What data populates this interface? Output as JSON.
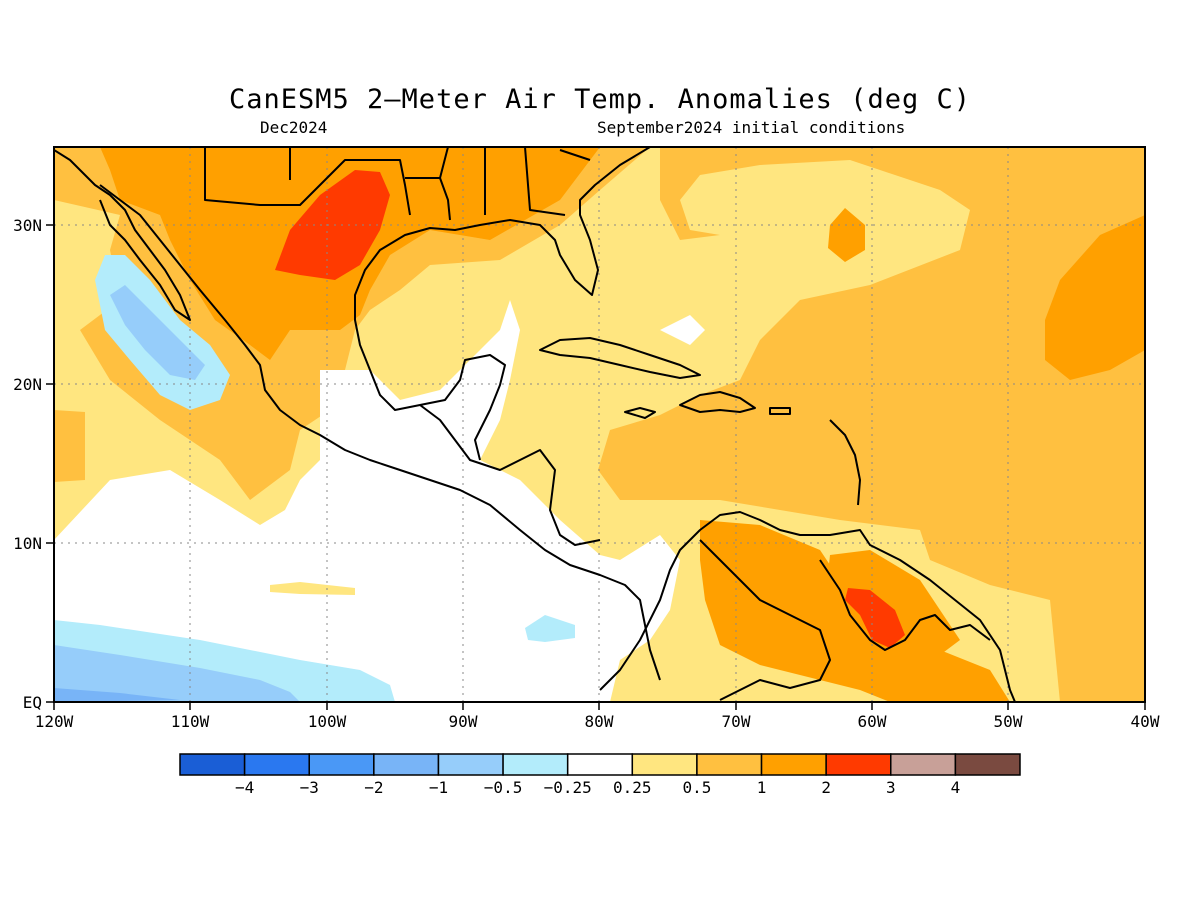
{
  "map": {
    "title": "CanESM5 2–Meter Air Temp. Anomalies (deg C)",
    "subtitle_left": "Dec2024",
    "subtitle_right": "September2024 initial conditions",
    "lat_labels": [
      "30N",
      "20N",
      "10N",
      "EQ"
    ],
    "lon_labels": [
      "120W",
      "110W",
      "100W",
      "90W",
      "80W",
      "70W",
      "60W",
      "50W",
      "40W"
    ],
    "region": {
      "lon_range": [
        -120,
        -40
      ],
      "lat_range": [
        0,
        35
      ]
    },
    "grid": true,
    "coastlines": true
  },
  "colorbar": {
    "colors": [
      "#1a5ed6",
      "#2a78f0",
      "#4a98f6",
      "#78b4f7",
      "#96cdfa",
      "#b3ecfb",
      "#ffffff",
      "#ffe680",
      "#ffc040",
      "#ffa000",
      "#ff3a00",
      "#c8a098",
      "#7a4a40"
    ],
    "labels": [
      "−4",
      "−3",
      "−2",
      "−1",
      "−0.5",
      "−0.25",
      "0.25",
      "0.5",
      "1",
      "2",
      "3",
      "4"
    ]
  }
}
